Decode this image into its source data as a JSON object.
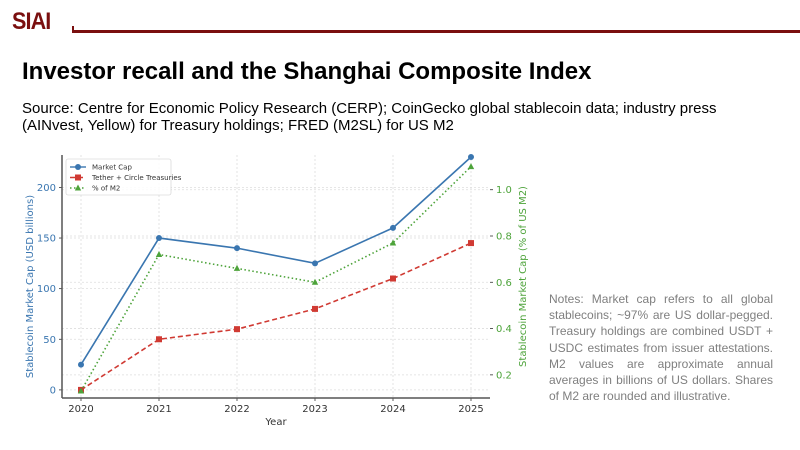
{
  "header": {
    "logo_text": "SIAI",
    "brand_color": "#7a0f0f"
  },
  "slide": {
    "title": "Investor recall and the Shanghai Composite Index",
    "source": "Source: Centre for Economic Policy Research (CERP); CoinGecko global stablecoin data; industry press (AINvest, Yellow) for Treasury holdings; FRED (M2SL) for US M2",
    "notes": "Notes: Market cap refers to all global stablecoins; ~97% are US dollar-pegged. Treasury holdings are combined USDT + USDC estimates from issuer attestations. M2 values are approximate annual averages in billions of US dollars. Shares of M2 are rounded and illustrative."
  },
  "chart_data": {
    "type": "line",
    "title": "",
    "xlabel": "Year",
    "ylabel": "Stablecoin Market Cap (USD billions)",
    "y2label": "Stablecoin Market Cap (% of US M2)",
    "categories": [
      "2020",
      "2021",
      "2022",
      "2023",
      "2024",
      "2025"
    ],
    "ylim": [
      -8,
      232
    ],
    "y2lim": [
      0.1,
      1.15
    ],
    "yticks": [
      0,
      50,
      100,
      150,
      200
    ],
    "y2ticks": [
      0.2,
      0.4,
      0.6,
      0.8,
      1.0
    ],
    "y2tick_labels": [
      "0.2",
      "0.4",
      "0.6",
      "0.8",
      "1.0"
    ],
    "grid": true,
    "legend_position": "top-left",
    "series": [
      {
        "name": "Market Cap",
        "axis": "left",
        "color": "#3a76b0",
        "style": "solid",
        "marker": "circle",
        "values": [
          25,
          150,
          140,
          125,
          160,
          230
        ]
      },
      {
        "name": "Tether + Circle Treasuries",
        "axis": "left",
        "color": "#d03a33",
        "style": "dashed",
        "marker": "square",
        "values": [
          0,
          50,
          60,
          80,
          110,
          145
        ]
      },
      {
        "name": "% of M2",
        "axis": "right",
        "color": "#4da33a",
        "style": "dotted",
        "marker": "triangle",
        "values": [
          0.13,
          0.72,
          0.66,
          0.6,
          0.77,
          1.1
        ]
      }
    ],
    "left_axis_color": "#3a76b0",
    "right_axis_color": "#4da33a"
  }
}
